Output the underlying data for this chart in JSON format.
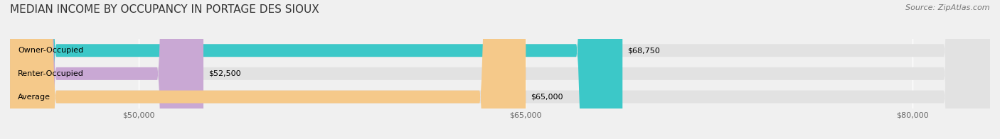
{
  "title": "MEDIAN INCOME BY OCCUPANCY IN PORTAGE DES SIOUX",
  "source": "Source: ZipAtlas.com",
  "categories": [
    "Owner-Occupied",
    "Renter-Occupied",
    "Average"
  ],
  "values": [
    68750,
    52500,
    65000
  ],
  "bar_colors": [
    "#3cc8c8",
    "#c9a8d4",
    "#f5c98a"
  ],
  "label_texts": [
    "$68,750",
    "$52,500",
    "$65,000"
  ],
  "xlim_min": 45000,
  "xlim_max": 83000,
  "xticks": [
    50000,
    65000,
    80000
  ],
  "xtick_labels": [
    "$50,000",
    "$65,000",
    "$80,000"
  ],
  "background_color": "#f0f0f0",
  "bar_bg_color": "#e2e2e2",
  "title_fontsize": 11,
  "source_fontsize": 8,
  "label_fontsize": 8,
  "tick_fontsize": 8,
  "category_fontsize": 8
}
